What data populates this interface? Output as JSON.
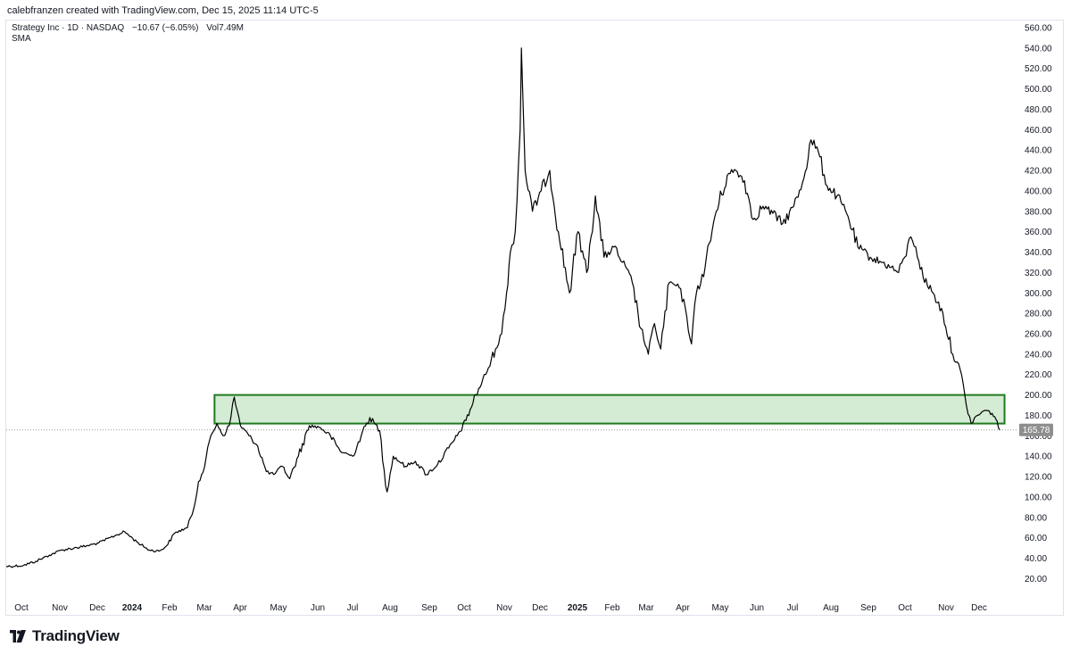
{
  "attribution": "calebfranzen created with TradingView.com, Dec 15, 2025 11:14 UTC-5",
  "legend": {
    "symbol": "Strategy Inc · 1D · NASDAQ",
    "change": "−10.67 (−6.05%)",
    "volume": "Vol7.49M",
    "indicator": "SMA"
  },
  "logo_text": "TradingView",
  "colors": {
    "price_line": "#000000",
    "zone_fill": "#d4ebd4",
    "zone_border": "#1f7a1f",
    "price_label_bg": "#8e8e8e",
    "grid_text": "#131722"
  },
  "chart_data": {
    "type": "line",
    "title": "",
    "xlabel": "",
    "ylabel": "",
    "ylim": [
      0,
      570
    ],
    "y_ticks": [
      "20.00",
      "40.00",
      "60.00",
      "80.00",
      "100.00",
      "120.00",
      "140.00",
      "160.00",
      "180.00",
      "200.00",
      "220.00",
      "240.00",
      "260.00",
      "280.00",
      "300.00",
      "320.00",
      "340.00",
      "360.00",
      "380.00",
      "400.00",
      "420.00",
      "440.00",
      "460.00",
      "480.00",
      "500.00",
      "520.00",
      "540.00",
      "560.00"
    ],
    "x_ticks": [
      {
        "label": "Oct",
        "bold": false
      },
      {
        "label": "Nov",
        "bold": false
      },
      {
        "label": "Dec",
        "bold": false
      },
      {
        "label": "2024",
        "bold": true
      },
      {
        "label": "Feb",
        "bold": false
      },
      {
        "label": "Mar",
        "bold": false
      },
      {
        "label": "Apr",
        "bold": false
      },
      {
        "label": "May",
        "bold": false
      },
      {
        "label": "Jun",
        "bold": false
      },
      {
        "label": "Jul",
        "bold": false
      },
      {
        "label": "Aug",
        "bold": false
      },
      {
        "label": "Sep",
        "bold": false
      },
      {
        "label": "Oct",
        "bold": false
      },
      {
        "label": "Nov",
        "bold": false
      },
      {
        "label": "Dec",
        "bold": false
      },
      {
        "label": "2025",
        "bold": true
      },
      {
        "label": "Feb",
        "bold": false
      },
      {
        "label": "Mar",
        "bold": false
      },
      {
        "label": "Apr",
        "bold": false
      },
      {
        "label": "May",
        "bold": false
      },
      {
        "label": "Jun",
        "bold": false
      },
      {
        "label": "Jul",
        "bold": false
      },
      {
        "label": "Aug",
        "bold": false
      },
      {
        "label": "Sep",
        "bold": false
      },
      {
        "label": "Oct",
        "bold": false
      },
      {
        "label": "Nov",
        "bold": false
      },
      {
        "label": "Dec",
        "bold": false
      }
    ],
    "series": [
      {
        "values": [
          [
            "2023-10-01",
            32
          ],
          [
            "2023-10-15",
            33
          ],
          [
            "2023-10-25",
            37
          ],
          [
            "2023-11-05",
            43
          ],
          [
            "2023-11-15",
            48
          ],
          [
            "2023-11-25",
            50
          ],
          [
            "2023-12-05",
            52
          ],
          [
            "2023-12-15",
            55
          ],
          [
            "2023-12-28",
            62
          ],
          [
            "2024-01-05",
            66
          ],
          [
            "2024-01-15",
            56
          ],
          [
            "2024-01-25",
            48
          ],
          [
            "2024-02-02",
            47
          ],
          [
            "2024-02-08",
            52
          ],
          [
            "2024-02-15",
            65
          ],
          [
            "2024-02-25",
            70
          ],
          [
            "2024-03-01",
            88
          ],
          [
            "2024-03-05",
            115
          ],
          [
            "2024-03-10",
            130
          ],
          [
            "2024-03-15",
            160
          ],
          [
            "2024-03-20",
            172
          ],
          [
            "2024-03-25",
            160
          ],
          [
            "2024-03-30",
            170
          ],
          [
            "2024-04-03",
            198
          ],
          [
            "2024-04-08",
            170
          ],
          [
            "2024-04-15",
            160
          ],
          [
            "2024-04-22",
            150
          ],
          [
            "2024-04-29",
            125
          ],
          [
            "2024-05-05",
            122
          ],
          [
            "2024-05-12",
            130
          ],
          [
            "2024-05-18",
            118
          ],
          [
            "2024-05-25",
            140
          ],
          [
            "2024-06-03",
            170
          ],
          [
            "2024-06-12",
            168
          ],
          [
            "2024-06-20",
            160
          ],
          [
            "2024-06-28",
            145
          ],
          [
            "2024-07-08",
            140
          ],
          [
            "2024-07-15",
            160
          ],
          [
            "2024-07-22",
            178
          ],
          [
            "2024-07-30",
            165
          ],
          [
            "2024-08-05",
            105
          ],
          [
            "2024-08-10",
            140
          ],
          [
            "2024-08-20",
            130
          ],
          [
            "2024-08-28",
            135
          ],
          [
            "2024-09-06",
            122
          ],
          [
            "2024-09-15",
            132
          ],
          [
            "2024-09-24",
            148
          ],
          [
            "2024-10-01",
            160
          ],
          [
            "2024-10-08",
            175
          ],
          [
            "2024-10-16",
            200
          ],
          [
            "2024-10-24",
            220
          ],
          [
            "2024-11-01",
            245
          ],
          [
            "2024-11-06",
            260
          ],
          [
            "2024-11-10",
            300
          ],
          [
            "2024-11-13",
            340
          ],
          [
            "2024-11-17",
            360
          ],
          [
            "2024-11-21",
            460
          ],
          [
            "2024-11-22",
            540
          ],
          [
            "2024-11-25",
            420
          ],
          [
            "2024-12-01",
            380
          ],
          [
            "2024-12-08",
            400
          ],
          [
            "2024-12-15",
            420
          ],
          [
            "2024-12-22",
            360
          ],
          [
            "2024-12-31",
            300
          ],
          [
            "2025-01-07",
            360
          ],
          [
            "2025-01-14",
            320
          ],
          [
            "2025-01-21",
            395
          ],
          [
            "2025-01-28",
            335
          ],
          [
            "2025-02-05",
            345
          ],
          [
            "2025-02-12",
            330
          ],
          [
            "2025-02-20",
            310
          ],
          [
            "2025-02-27",
            265
          ],
          [
            "2025-03-05",
            240
          ],
          [
            "2025-03-10",
            270
          ],
          [
            "2025-03-15",
            245
          ],
          [
            "2025-03-22",
            310
          ],
          [
            "2025-03-30",
            305
          ],
          [
            "2025-04-04",
            285
          ],
          [
            "2025-04-09",
            250
          ],
          [
            "2025-04-13",
            300
          ],
          [
            "2025-04-20",
            325
          ],
          [
            "2025-04-28",
            375
          ],
          [
            "2025-05-08",
            415
          ],
          [
            "2025-05-15",
            420
          ],
          [
            "2025-05-22",
            410
          ],
          [
            "2025-05-29",
            372
          ],
          [
            "2025-06-06",
            385
          ],
          [
            "2025-06-14",
            378
          ],
          [
            "2025-06-22",
            368
          ],
          [
            "2025-07-01",
            385
          ],
          [
            "2025-07-08",
            408
          ],
          [
            "2025-07-15",
            450
          ],
          [
            "2025-07-21",
            438
          ],
          [
            "2025-07-28",
            405
          ],
          [
            "2025-08-05",
            395
          ],
          [
            "2025-08-14",
            375
          ],
          [
            "2025-08-22",
            345
          ],
          [
            "2025-09-01",
            335
          ],
          [
            "2025-09-10",
            330
          ],
          [
            "2025-09-18",
            325
          ],
          [
            "2025-09-24",
            320
          ],
          [
            "2025-09-29",
            335
          ],
          [
            "2025-10-04",
            355
          ],
          [
            "2025-10-08",
            345
          ],
          [
            "2025-10-14",
            315
          ],
          [
            "2025-10-22",
            300
          ],
          [
            "2025-10-30",
            280
          ],
          [
            "2025-11-07",
            240
          ],
          [
            "2025-11-13",
            225
          ],
          [
            "2025-11-18",
            190
          ],
          [
            "2025-11-22",
            172
          ],
          [
            "2025-11-27",
            180
          ],
          [
            "2025-12-03",
            185
          ],
          [
            "2025-12-09",
            182
          ],
          [
            "2025-12-12",
            176
          ],
          [
            "2025-12-15",
            165.78
          ]
        ]
      }
    ],
    "zone": {
      "low": 172,
      "high": 200,
      "from": "2024-03-18",
      "to": "2025-12-19"
    },
    "last_price": 165.78,
    "last_price_label": "165.78"
  }
}
